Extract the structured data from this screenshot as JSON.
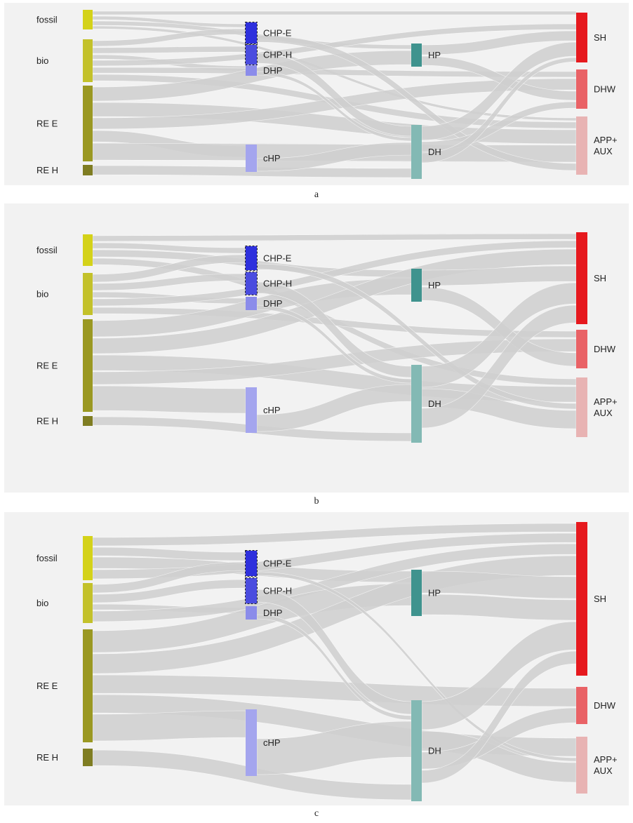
{
  "captions": {
    "a": "a",
    "b": "b",
    "c": "c"
  },
  "colors": {
    "link": "#cfcfcf",
    "fossil": "#d4d219",
    "bio": "#c3c12a",
    "re_e": "#9a9822",
    "re_h": "#7f7d22",
    "chp": "#2e30dd",
    "chp_h": "#4a4cdf",
    "dhp": "#8b8cea",
    "chp_outline": "#222222",
    "chp_outline_style": "dashed",
    "hp_storage": "#a4a5ee",
    "hp": "#3f938e",
    "dh": "#83b9b4",
    "sh": "#e6191e",
    "dhw": "#e96266",
    "app_aux": "#e8b3b3"
  },
  "node_labels": {
    "fossil": "fossil",
    "bio": "bio",
    "re_e": "RE E",
    "re_h": "RE H",
    "chp_e": "CHP-E",
    "chp_h": "CHP-H",
    "dhp": "DHP",
    "chp": "cHP",
    "hp": "HP",
    "dh": "DH",
    "sh": "SH",
    "dhw": "DHW",
    "app1": "APP+",
    "app2": "AUX"
  }
}
